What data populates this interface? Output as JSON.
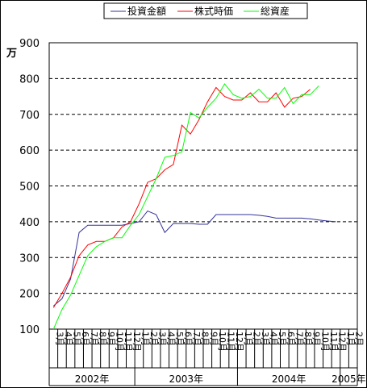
{
  "chart_data": {
    "type": "line",
    "y_unit": "万",
    "ylim": [
      100,
      900
    ],
    "y_ticks": [
      100,
      200,
      300,
      400,
      500,
      600,
      700,
      800,
      900
    ],
    "grid": "horizontal-dashed",
    "legend_position": "top",
    "x_month_labels": [
      "3月",
      "4月",
      "5月",
      "6月",
      "7月",
      "8月",
      "9月",
      "10月",
      "11月",
      "12月",
      "1月",
      "2月",
      "3月",
      "4月",
      "5月",
      "6月",
      "7月",
      "8月",
      "9月",
      "10月",
      "11月",
      "12月",
      "1月",
      "2月",
      "3月",
      "4月",
      "5月",
      "6月",
      "7月",
      "8月",
      "9月",
      "10月",
      "11月",
      "12月",
      "1月",
      "2月"
    ],
    "year_groups": [
      {
        "label": "2002年",
        "start": 0,
        "end": 10
      },
      {
        "label": "2003年",
        "start": 10,
        "end": 22
      },
      {
        "label": "2004年",
        "start": 22,
        "end": 34
      },
      {
        "label": "2005年",
        "start": 34,
        "end": 36
      }
    ],
    "series": [
      {
        "name": "投資金額",
        "color": "#333399",
        "values": [
          165,
          185,
          240,
          370,
          390,
          390,
          390,
          390,
          390,
          395,
          400,
          430,
          420,
          370,
          395,
          395,
          395,
          393,
          393,
          420,
          420,
          420,
          420,
          420,
          418,
          415,
          410,
          410,
          410,
          410,
          408,
          405,
          402,
          400
        ]
      },
      {
        "name": "株式時価",
        "color": "#ff0000",
        "values": [
          160,
          200,
          245,
          305,
          335,
          345,
          345,
          355,
          385,
          400,
          450,
          510,
          520,
          545,
          560,
          670,
          645,
          685,
          735,
          775,
          750,
          740,
          740,
          760,
          735,
          735,
          760,
          720,
          745,
          750,
          770
        ]
      },
      {
        "name": "総資産",
        "color": "#00ff00",
        "values": [
          100,
          155,
          195,
          250,
          305,
          330,
          345,
          355,
          355,
          390,
          420,
          470,
          520,
          580,
          585,
          595,
          705,
          690,
          720,
          745,
          785,
          755,
          745,
          750,
          770,
          745,
          745,
          775,
          730,
          755,
          755,
          780
        ]
      }
    ]
  }
}
